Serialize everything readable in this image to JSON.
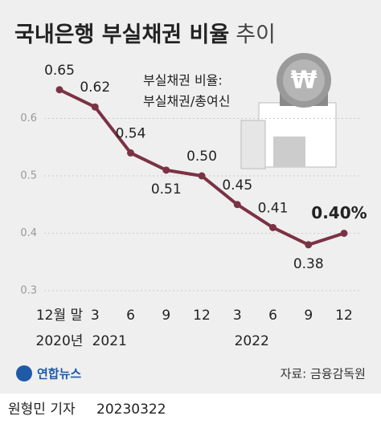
{
  "chart_data": {
    "type": "line",
    "title": "국내은행 부실채권 비율",
    "title_suffix": "추이",
    "annotation": [
      "부실채권 비율:",
      "부실채권/총여신"
    ],
    "categories": [
      "12월 말",
      "3",
      "6",
      "9",
      "12",
      "3",
      "6",
      "9",
      "12"
    ],
    "year_labels": [
      "2020년",
      "2021",
      null,
      null,
      null,
      "2022",
      null,
      null,
      null
    ],
    "series": [
      {
        "name": "부실채권 비율",
        "color": "#7b3244",
        "values": [
          0.65,
          0.62,
          0.54,
          0.51,
          0.5,
          0.45,
          0.41,
          0.38,
          0.4
        ],
        "value_labels": [
          "0.65",
          "0.62",
          "0.54",
          "0.51",
          "0.50",
          "0.45",
          "0.41",
          "0.38",
          "0.40%"
        ]
      }
    ],
    "ylim": [
      0.3,
      0.7
    ],
    "yticks": [
      0.3,
      0.4,
      0.5,
      0.6
    ],
    "grid": true,
    "source": "자료: 금융감독원",
    "logo": "연합뉴스",
    "byline": "원형민 기자",
    "date": "20230322"
  }
}
